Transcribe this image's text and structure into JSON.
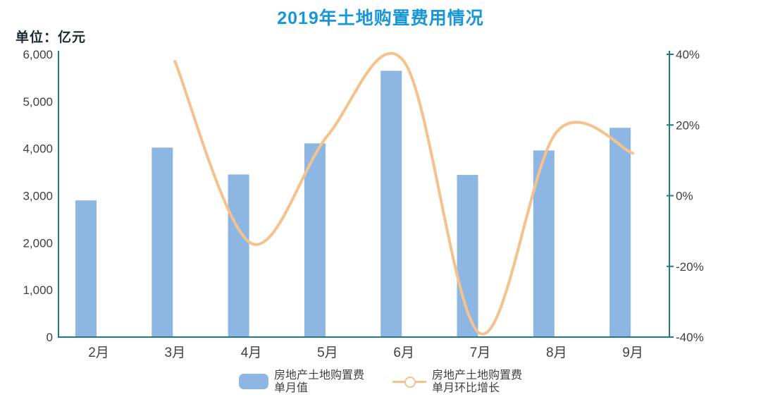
{
  "title": "2019年土地购置费用情况",
  "unit_label": "单位：亿元",
  "colors": {
    "title": "#1797D8",
    "unit_text": "#1B2B33",
    "bar": "#8DB7E2",
    "line": "#F5C18C",
    "axis": "#1E7A85",
    "tick_text": "#404040",
    "legend_text": "#3F3F3F"
  },
  "chart_data": {
    "type": "combo-bar-line",
    "title": "2019年土地购置费用情况",
    "categories": [
      "2月",
      "3月",
      "4月",
      "5月",
      "6月",
      "7月",
      "8月",
      "9月"
    ],
    "series": [
      {
        "name": "房地产土地购置费单月值",
        "type": "bar",
        "axis": "left",
        "unit": "亿元",
        "values": [
          2900,
          4020,
          3450,
          4110,
          5650,
          3440,
          3960,
          4440
        ]
      },
      {
        "name": "房地产土地购置费单月环比增长",
        "type": "line",
        "axis": "right",
        "unit": "%",
        "values": [
          null,
          38,
          -13.5,
          17,
          38,
          -39,
          18,
          12
        ]
      }
    ],
    "left_axis": {
      "label": "单位：亿元",
      "min": 0,
      "max": 6000,
      "tick_step": 1000,
      "tick_labels": [
        "0",
        "1,000",
        "2,000",
        "3,000",
        "4,000",
        "5,000",
        "6,000"
      ]
    },
    "right_axis": {
      "min": -40,
      "max": 40,
      "tick_step": 20,
      "tick_labels": [
        "-40%",
        "-20%",
        "0%",
        "20%",
        "40%"
      ]
    },
    "grid": false,
    "legend_position": "bottom"
  },
  "legend": {
    "items": [
      {
        "line1": "房地产土地购置费",
        "line2": "单月值",
        "marker": "bar-swatch"
      },
      {
        "line1": "房地产土地购置费",
        "line2": "单月环比增长",
        "marker": "line-circle"
      }
    ]
  }
}
